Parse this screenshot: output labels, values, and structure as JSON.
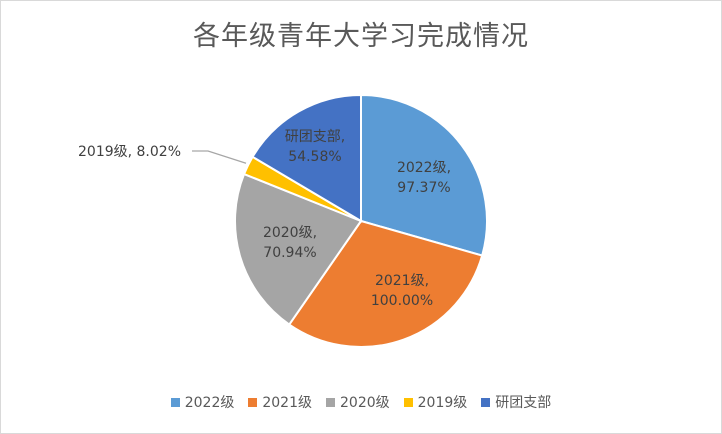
{
  "chart_data": {
    "type": "pie",
    "title": "各年级青年大学习完成情况",
    "categories": [
      "2022级",
      "2021级",
      "2020级",
      "2019级",
      "研团支部"
    ],
    "values": [
      97.37,
      100.0,
      70.94,
      8.02,
      54.58
    ],
    "labels": [
      "97.37%",
      "100.00%",
      "70.94%",
      "8.02%",
      "54.58%"
    ],
    "colors": [
      "#5b9bd5",
      "#ed7d31",
      "#a5a5a5",
      "#ffc000",
      "#4472c4"
    ],
    "legend_position": "bottom"
  }
}
